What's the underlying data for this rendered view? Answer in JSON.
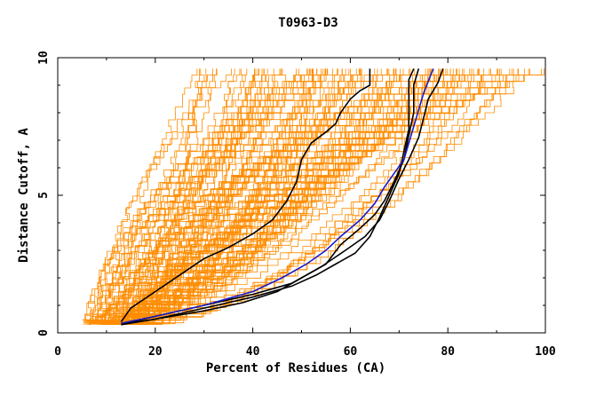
{
  "chart_data": {
    "type": "line",
    "title": "T0963-D3",
    "xlabel": "Percent of Residues (CA)",
    "ylabel": "Distance Cutoff, A",
    "xlim": [
      0,
      100
    ],
    "ylim": [
      0,
      10
    ],
    "x_ticks": [
      "0",
      "20",
      "40",
      "60",
      "80",
      "100"
    ],
    "x_tick_values": [
      0,
      20,
      40,
      60,
      80,
      100
    ],
    "y_ticks": [
      "0",
      "5",
      "10"
    ],
    "y_tick_values": [
      0,
      5,
      10
    ],
    "grid": false,
    "legend": "none",
    "colors": {
      "background_models": "#ff8c00",
      "highlight_black": "#000000",
      "highlight_blue": "#1a1ac8"
    },
    "background_model_count": 120,
    "series": [
      {
        "color": "#000000",
        "points": [
          [
            13,
            0.4
          ],
          [
            15,
            0.9
          ],
          [
            20,
            1.5
          ],
          [
            25,
            2.1
          ],
          [
            30,
            2.7
          ],
          [
            35,
            3.1
          ],
          [
            40,
            3.6
          ],
          [
            44,
            4.1
          ],
          [
            47,
            4.8
          ],
          [
            49,
            5.5
          ],
          [
            50,
            6.3
          ],
          [
            52,
            6.9
          ],
          [
            55,
            7.3
          ],
          [
            57,
            7.6
          ],
          [
            58,
            8.0
          ],
          [
            60,
            8.5
          ],
          [
            62,
            8.8
          ],
          [
            64,
            9.0
          ],
          [
            64,
            9.6
          ]
        ]
      },
      {
        "color": "#000000",
        "points": [
          [
            13,
            0.3
          ],
          [
            20,
            0.5
          ],
          [
            30,
            0.9
          ],
          [
            40,
            1.3
          ],
          [
            48,
            1.7
          ],
          [
            53,
            2.1
          ],
          [
            57,
            2.5
          ],
          [
            61,
            2.9
          ],
          [
            64,
            3.5
          ],
          [
            66,
            4.2
          ],
          [
            68,
            5.0
          ],
          [
            70,
            5.8
          ],
          [
            71,
            6.6
          ],
          [
            72,
            7.4
          ],
          [
            72,
            8.2
          ],
          [
            72,
            9.2
          ],
          [
            73,
            9.6
          ]
        ]
      },
      {
        "color": "#000000",
        "points": [
          [
            13,
            0.3
          ],
          [
            20,
            0.5
          ],
          [
            30,
            0.8
          ],
          [
            38,
            1.1
          ],
          [
            45,
            1.5
          ],
          [
            50,
            2.0
          ],
          [
            55,
            2.5
          ],
          [
            58,
            3.2
          ],
          [
            62,
            3.8
          ],
          [
            65,
            4.3
          ],
          [
            67,
            4.8
          ],
          [
            69,
            5.5
          ],
          [
            71,
            6.3
          ],
          [
            72,
            7.2
          ],
          [
            73,
            8.0
          ],
          [
            73,
            9.0
          ],
          [
            74,
            9.6
          ]
        ]
      },
      {
        "color": "#000000",
        "points": [
          [
            13,
            0.3
          ],
          [
            20,
            0.6
          ],
          [
            30,
            1.0
          ],
          [
            40,
            1.4
          ],
          [
            48,
            1.8
          ],
          [
            54,
            2.4
          ],
          [
            59,
            3.0
          ],
          [
            63,
            3.5
          ],
          [
            66,
            4.1
          ],
          [
            68,
            4.8
          ],
          [
            70,
            5.6
          ],
          [
            72,
            6.3
          ],
          [
            74,
            7.1
          ],
          [
            75,
            7.8
          ],
          [
            76,
            8.5
          ],
          [
            78,
            9.1
          ],
          [
            79,
            9.6
          ]
        ]
      },
      {
        "color": "#1a1ac8",
        "points": [
          [
            13,
            0.35
          ],
          [
            20,
            0.6
          ],
          [
            30,
            1.0
          ],
          [
            40,
            1.5
          ],
          [
            46,
            2.0
          ],
          [
            51,
            2.5
          ],
          [
            55,
            3.0
          ],
          [
            58,
            3.5
          ],
          [
            62,
            4.1
          ],
          [
            65,
            4.7
          ],
          [
            67,
            5.3
          ],
          [
            69,
            5.8
          ],
          [
            71,
            6.3
          ],
          [
            72,
            6.9
          ],
          [
            73,
            7.5
          ],
          [
            74,
            8.1
          ],
          [
            75,
            8.7
          ],
          [
            77,
            9.6
          ]
        ]
      }
    ]
  }
}
